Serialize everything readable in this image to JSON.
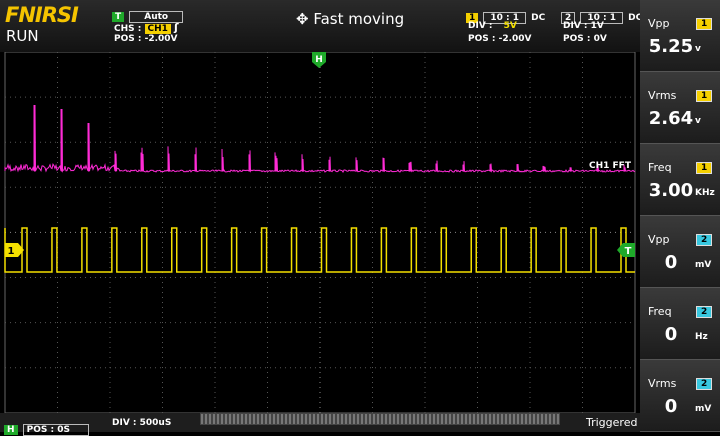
{
  "header": {
    "logo": "FNIRSI",
    "status": "RUN",
    "trigger_badge": "T",
    "trigger_mode": "Auto",
    "source_label": "CHS :",
    "source_channel": "CH1",
    "trigger_edge": "ʃ",
    "trigger_pos": "POS : -2.00V",
    "title": "✥ Fast moving"
  },
  "channel1": {
    "number": "1",
    "probe": "10 : 1",
    "coupling": "DC",
    "div_label": "DIV :",
    "div_value": "5V",
    "pos": "POS : -2.00V"
  },
  "channel2": {
    "number": "2",
    "probe": "10 : 1",
    "coupling": "DC",
    "div": "DIV :  1V",
    "pos": "POS : 0V"
  },
  "measurements": [
    {
      "label": "Vpp",
      "channel": "1",
      "value": "5.25",
      "unit": "v"
    },
    {
      "label": "Vrms",
      "channel": "1",
      "value": "2.64",
      "unit": "v"
    },
    {
      "label": "Freq",
      "channel": "1",
      "value": "3.00",
      "unit": "KHz"
    },
    {
      "label": "Vpp",
      "channel": "2",
      "value": "0",
      "unit": "mV"
    },
    {
      "label": "Freq",
      "channel": "2",
      "value": "0",
      "unit": "Hz"
    },
    {
      "label": "Vrms",
      "channel": "2",
      "value": "0",
      "unit": "mV"
    }
  ],
  "plot": {
    "fft_label": "CH1  FFT",
    "h_marker": "H",
    "ch1_marker": "1",
    "trigger_marker": "T"
  },
  "footer": {
    "h_badge": "H",
    "pos": "POS : 0S",
    "div": "DIV : 500uS",
    "status": "Triggered"
  }
}
